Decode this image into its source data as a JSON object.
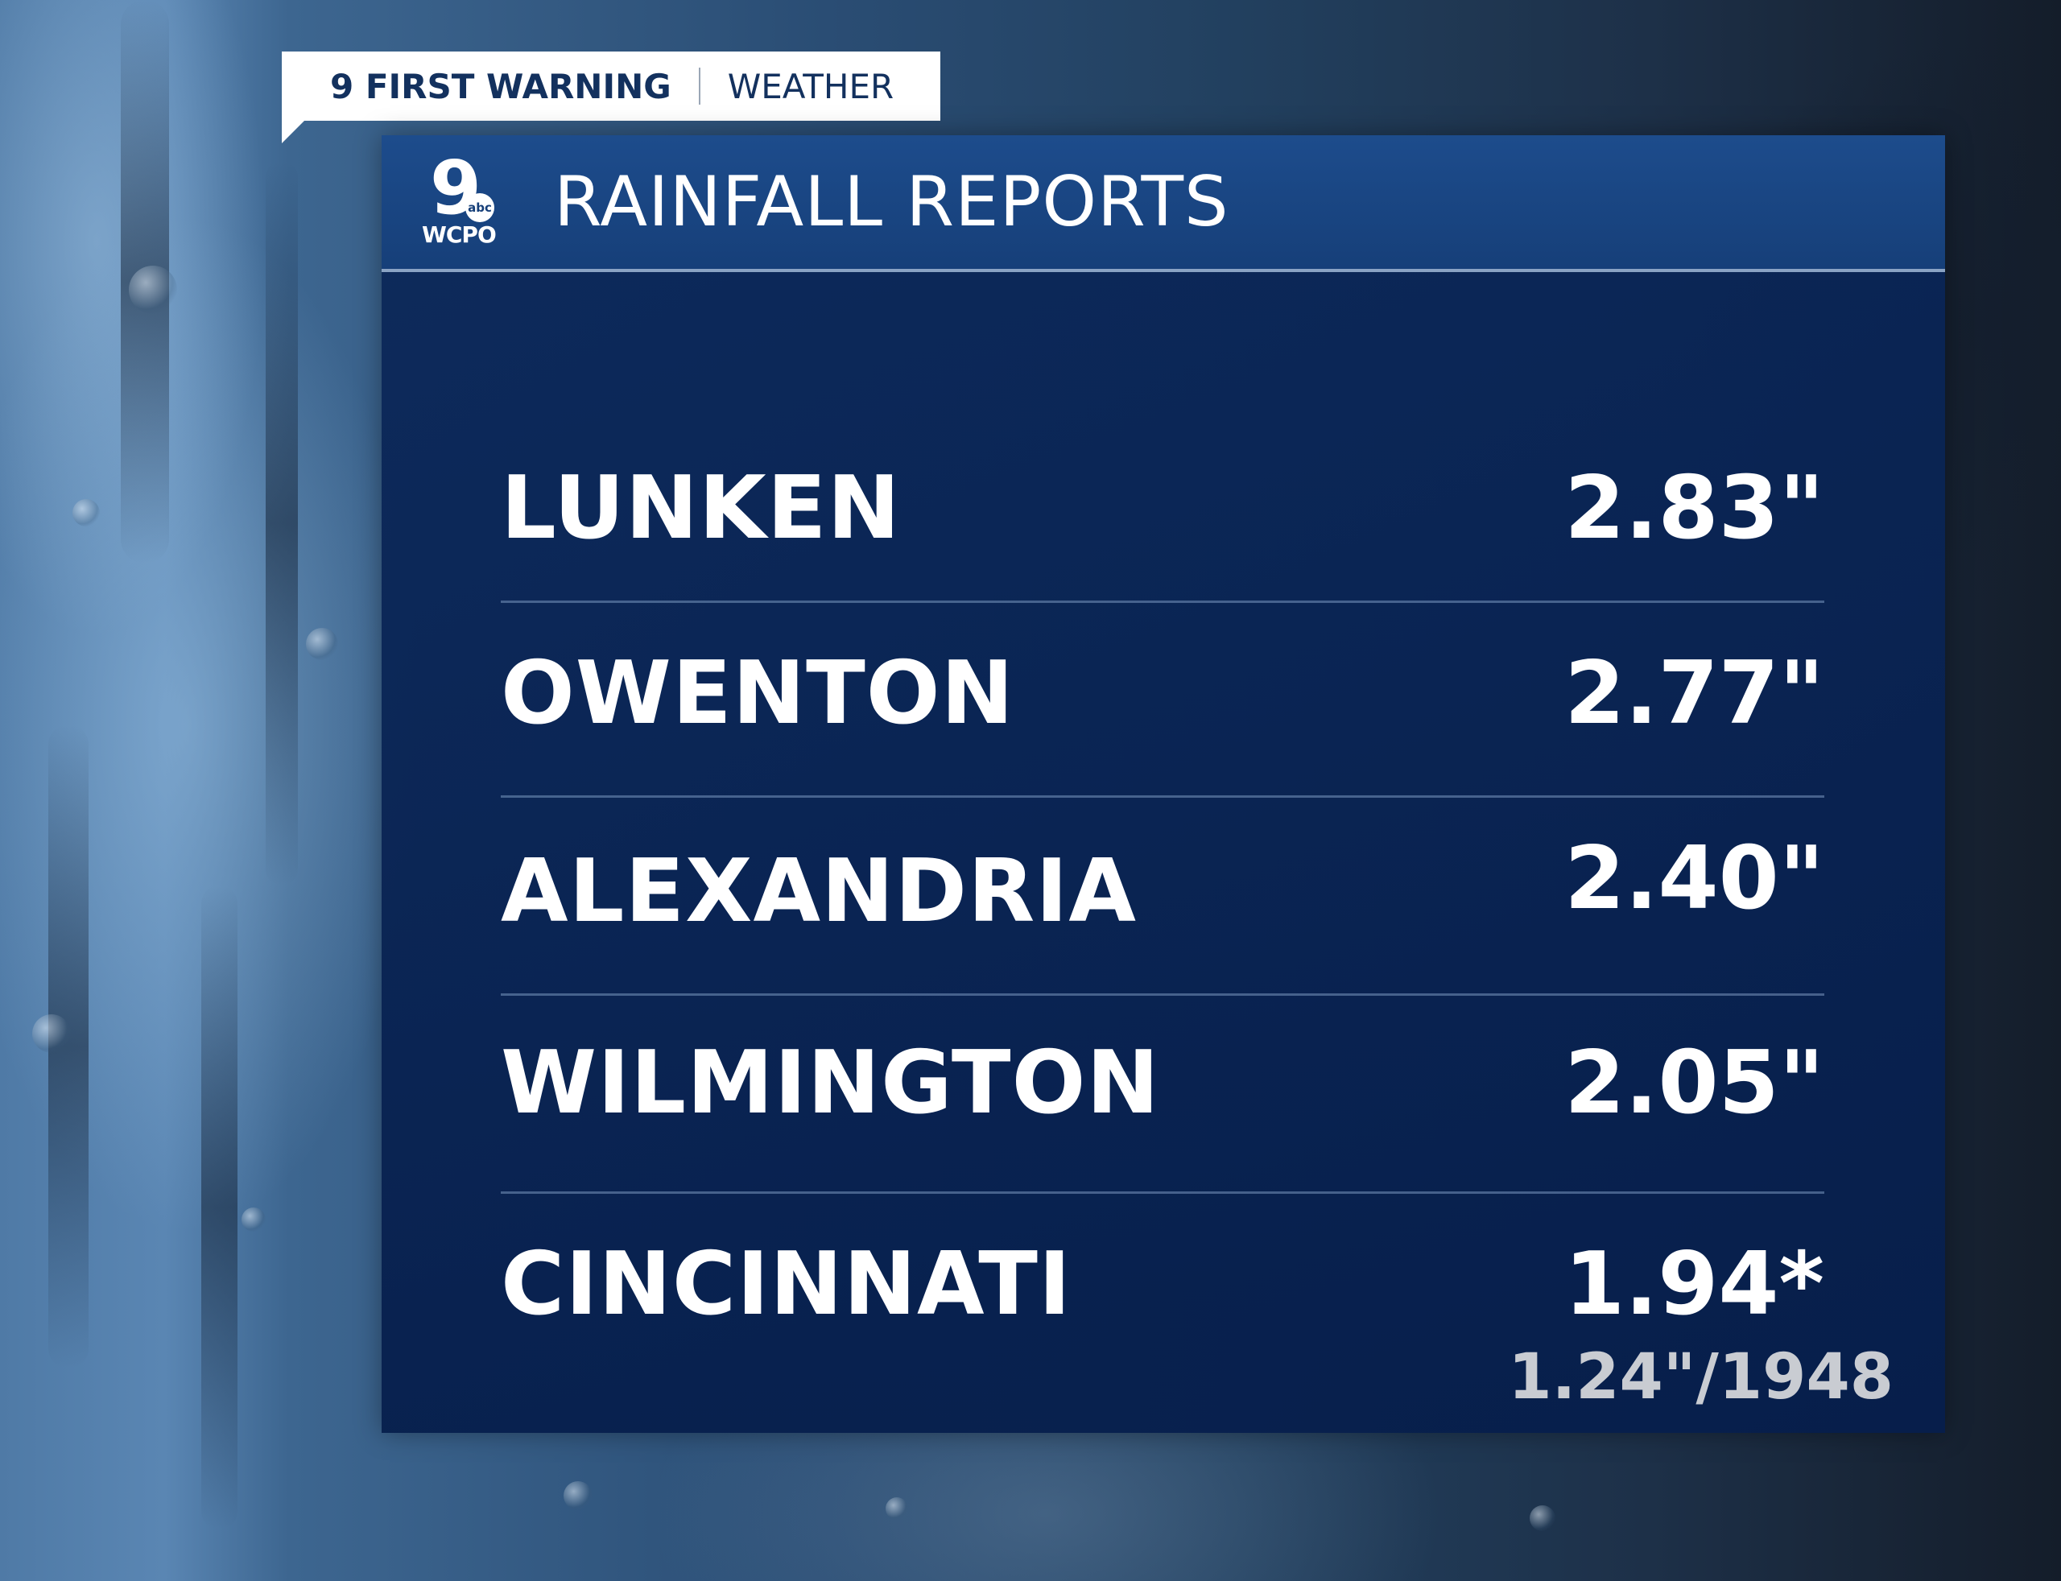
{
  "header_tag": {
    "brand": "9 FIRST WARNING",
    "section": "WEATHER"
  },
  "panel": {
    "logo": {
      "number": "9",
      "network": "abc",
      "call_letters": "WCPO"
    },
    "title": "RAINFALL REPORTS"
  },
  "reports": [
    {
      "location": "LUNKEN",
      "amount": "2.83\""
    },
    {
      "location": "OWENTON",
      "amount": "2.77\""
    },
    {
      "location": "ALEXANDRIA",
      "amount": "2.40\""
    },
    {
      "location": "WILMINGTON",
      "amount": "2.05\""
    },
    {
      "location": "CINCINNATI",
      "amount": "1.94*"
    }
  ],
  "record_note": "1.24\"/1948",
  "colors": {
    "panel_bg": "#082252",
    "header_bg": "#1a4685",
    "tag_text": "#13315e",
    "record_text": "#c9ccd2"
  }
}
